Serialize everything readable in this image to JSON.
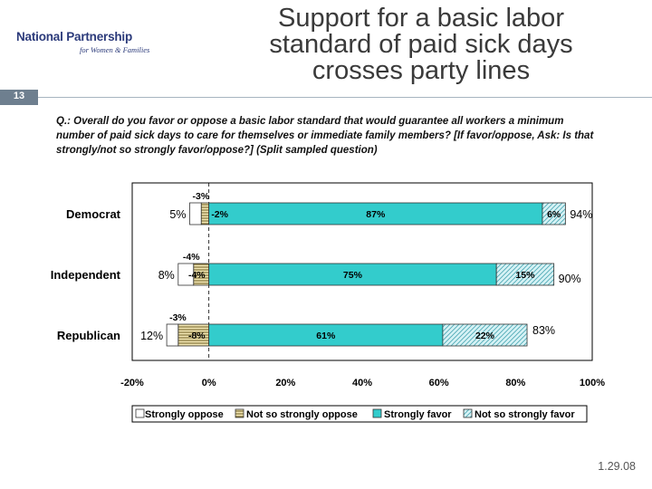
{
  "logo": {
    "title": "National Partnership",
    "subtitle": "for Women & Families"
  },
  "slide": {
    "title_lines": [
      "Support for a basic labor",
      "standard of paid sick days",
      "crosses party lines"
    ],
    "number": "13",
    "question": "Q.: Overall do you favor or oppose a basic labor standard that would guarantee all workers a minimum number of paid sick days to care for themselves or immediate family members? [If favor/oppose, Ask: Is that strongly/not so strongly favor/oppose?] (Split sampled question)",
    "date": "1.29.08"
  },
  "colors": {
    "strongly_favor": "#33cccc",
    "not_so_strongly_favor": "#d6f2f5",
    "not_so_strongly_oppose": "#f2e6b3",
    "strongly_oppose": "#ffffff",
    "title": "#3a3a3a",
    "slide_bar": "#6e7f8f"
  },
  "chart_data": {
    "type": "bar",
    "orientation": "horizontal",
    "stacked": true,
    "categories": [
      "Democrat",
      "Independent",
      "Republican"
    ],
    "series": [
      {
        "name": "Strongly oppose",
        "values": [
          -3,
          -4,
          -3
        ],
        "labels": [
          "-3%",
          "-4%",
          "-3%"
        ]
      },
      {
        "name": "Not so strongly oppose",
        "values": [
          -2,
          -4,
          -8
        ],
        "labels": [
          "-2%",
          "-4%",
          "-8%"
        ]
      },
      {
        "name": "Strongly favor",
        "values": [
          87,
          75,
          61
        ],
        "labels": [
          "87%",
          "75%",
          "61%"
        ]
      },
      {
        "name": "Not so strongly favor",
        "values": [
          6,
          15,
          22
        ],
        "labels": [
          "6%",
          "15%",
          "22%"
        ]
      }
    ],
    "oppose_totals": [
      "5%",
      "8%",
      "12%"
    ],
    "favor_totals": [
      "94%",
      "90%",
      "83%"
    ],
    "xlim": [
      -20,
      100
    ],
    "xticks": [
      -20,
      0,
      20,
      40,
      60,
      80,
      100
    ],
    "xtick_labels": [
      "-20%",
      "0%",
      "20%",
      "40%",
      "60%",
      "80%",
      "100%"
    ],
    "grid": false,
    "legend_position": "bottom"
  }
}
